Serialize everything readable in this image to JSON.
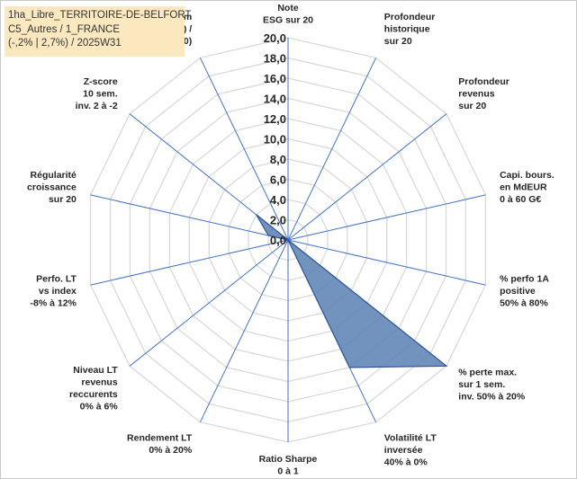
{
  "title_lines": [
    "1ha_Libre_TERRITOIRE-DE-BELFORT",
    "C5_Autres / 1_FRANCE",
    "(-,2% | 2,7%) / 2025W31"
  ],
  "chart_data": {
    "type": "radar",
    "rmax": 20,
    "ticks": [
      "0,0",
      "2,0",
      "4,0",
      "6,0",
      "8,0",
      "10,0",
      "12,0",
      "14,0",
      "16,0",
      "18,0",
      "20,0"
    ],
    "axes": [
      {
        "label": [
          "Note",
          "ESG sur 20"
        ],
        "value": 0
      },
      {
        "label": [
          "Profondeur",
          "historique",
          "sur 20"
        ],
        "value": 0
      },
      {
        "label": [
          "Profondeur",
          "revenus",
          "sur 20"
        ],
        "value": 0
      },
      {
        "label": [
          "Capi. bours.",
          "en MdEUR",
          "0 à 60 G€"
        ],
        "value": 0
      },
      {
        "label": [
          "% perfo 1A",
          "positive",
          "50% à 80%"
        ],
        "value": 0
      },
      {
        "label": [
          "% perte max.",
          "sur 1 sem.",
          "inv. 50% à 20%"
        ],
        "value": 20
      },
      {
        "label": [
          "Volatilité LT",
          "inversée",
          "40% à 0%"
        ],
        "value": 14
      },
      {
        "label": [
          "Ratio Sharpe",
          "0 à 1"
        ],
        "value": 0
      },
      {
        "label": [
          "Rendement LT",
          "0% à 20%"
        ],
        "value": 0
      },
      {
        "label": [
          "Niveau LT",
          "revenus",
          "reccurents",
          "0% à 6%"
        ],
        "value": 0
      },
      {
        "label": [
          "Perfo. LT",
          "vs index",
          "-8% à 12%"
        ],
        "value": 0
      },
      {
        "label": [
          "Régularité",
          "croissance",
          "sur 20"
        ],
        "value": 2
      },
      {
        "label": [
          "Z-score",
          "10 sem.",
          "inv. 2 à -2"
        ],
        "value": 4
      },
      {
        "label": [
          "Momentum",
          "Achat (20) /",
          "Vente (0)"
        ],
        "value": 0
      }
    ],
    "colors": {
      "fill": "#5b80b4",
      "stroke": "#2f5597",
      "grid": "#d9d9d9",
      "spoke": "#4472c4"
    }
  }
}
